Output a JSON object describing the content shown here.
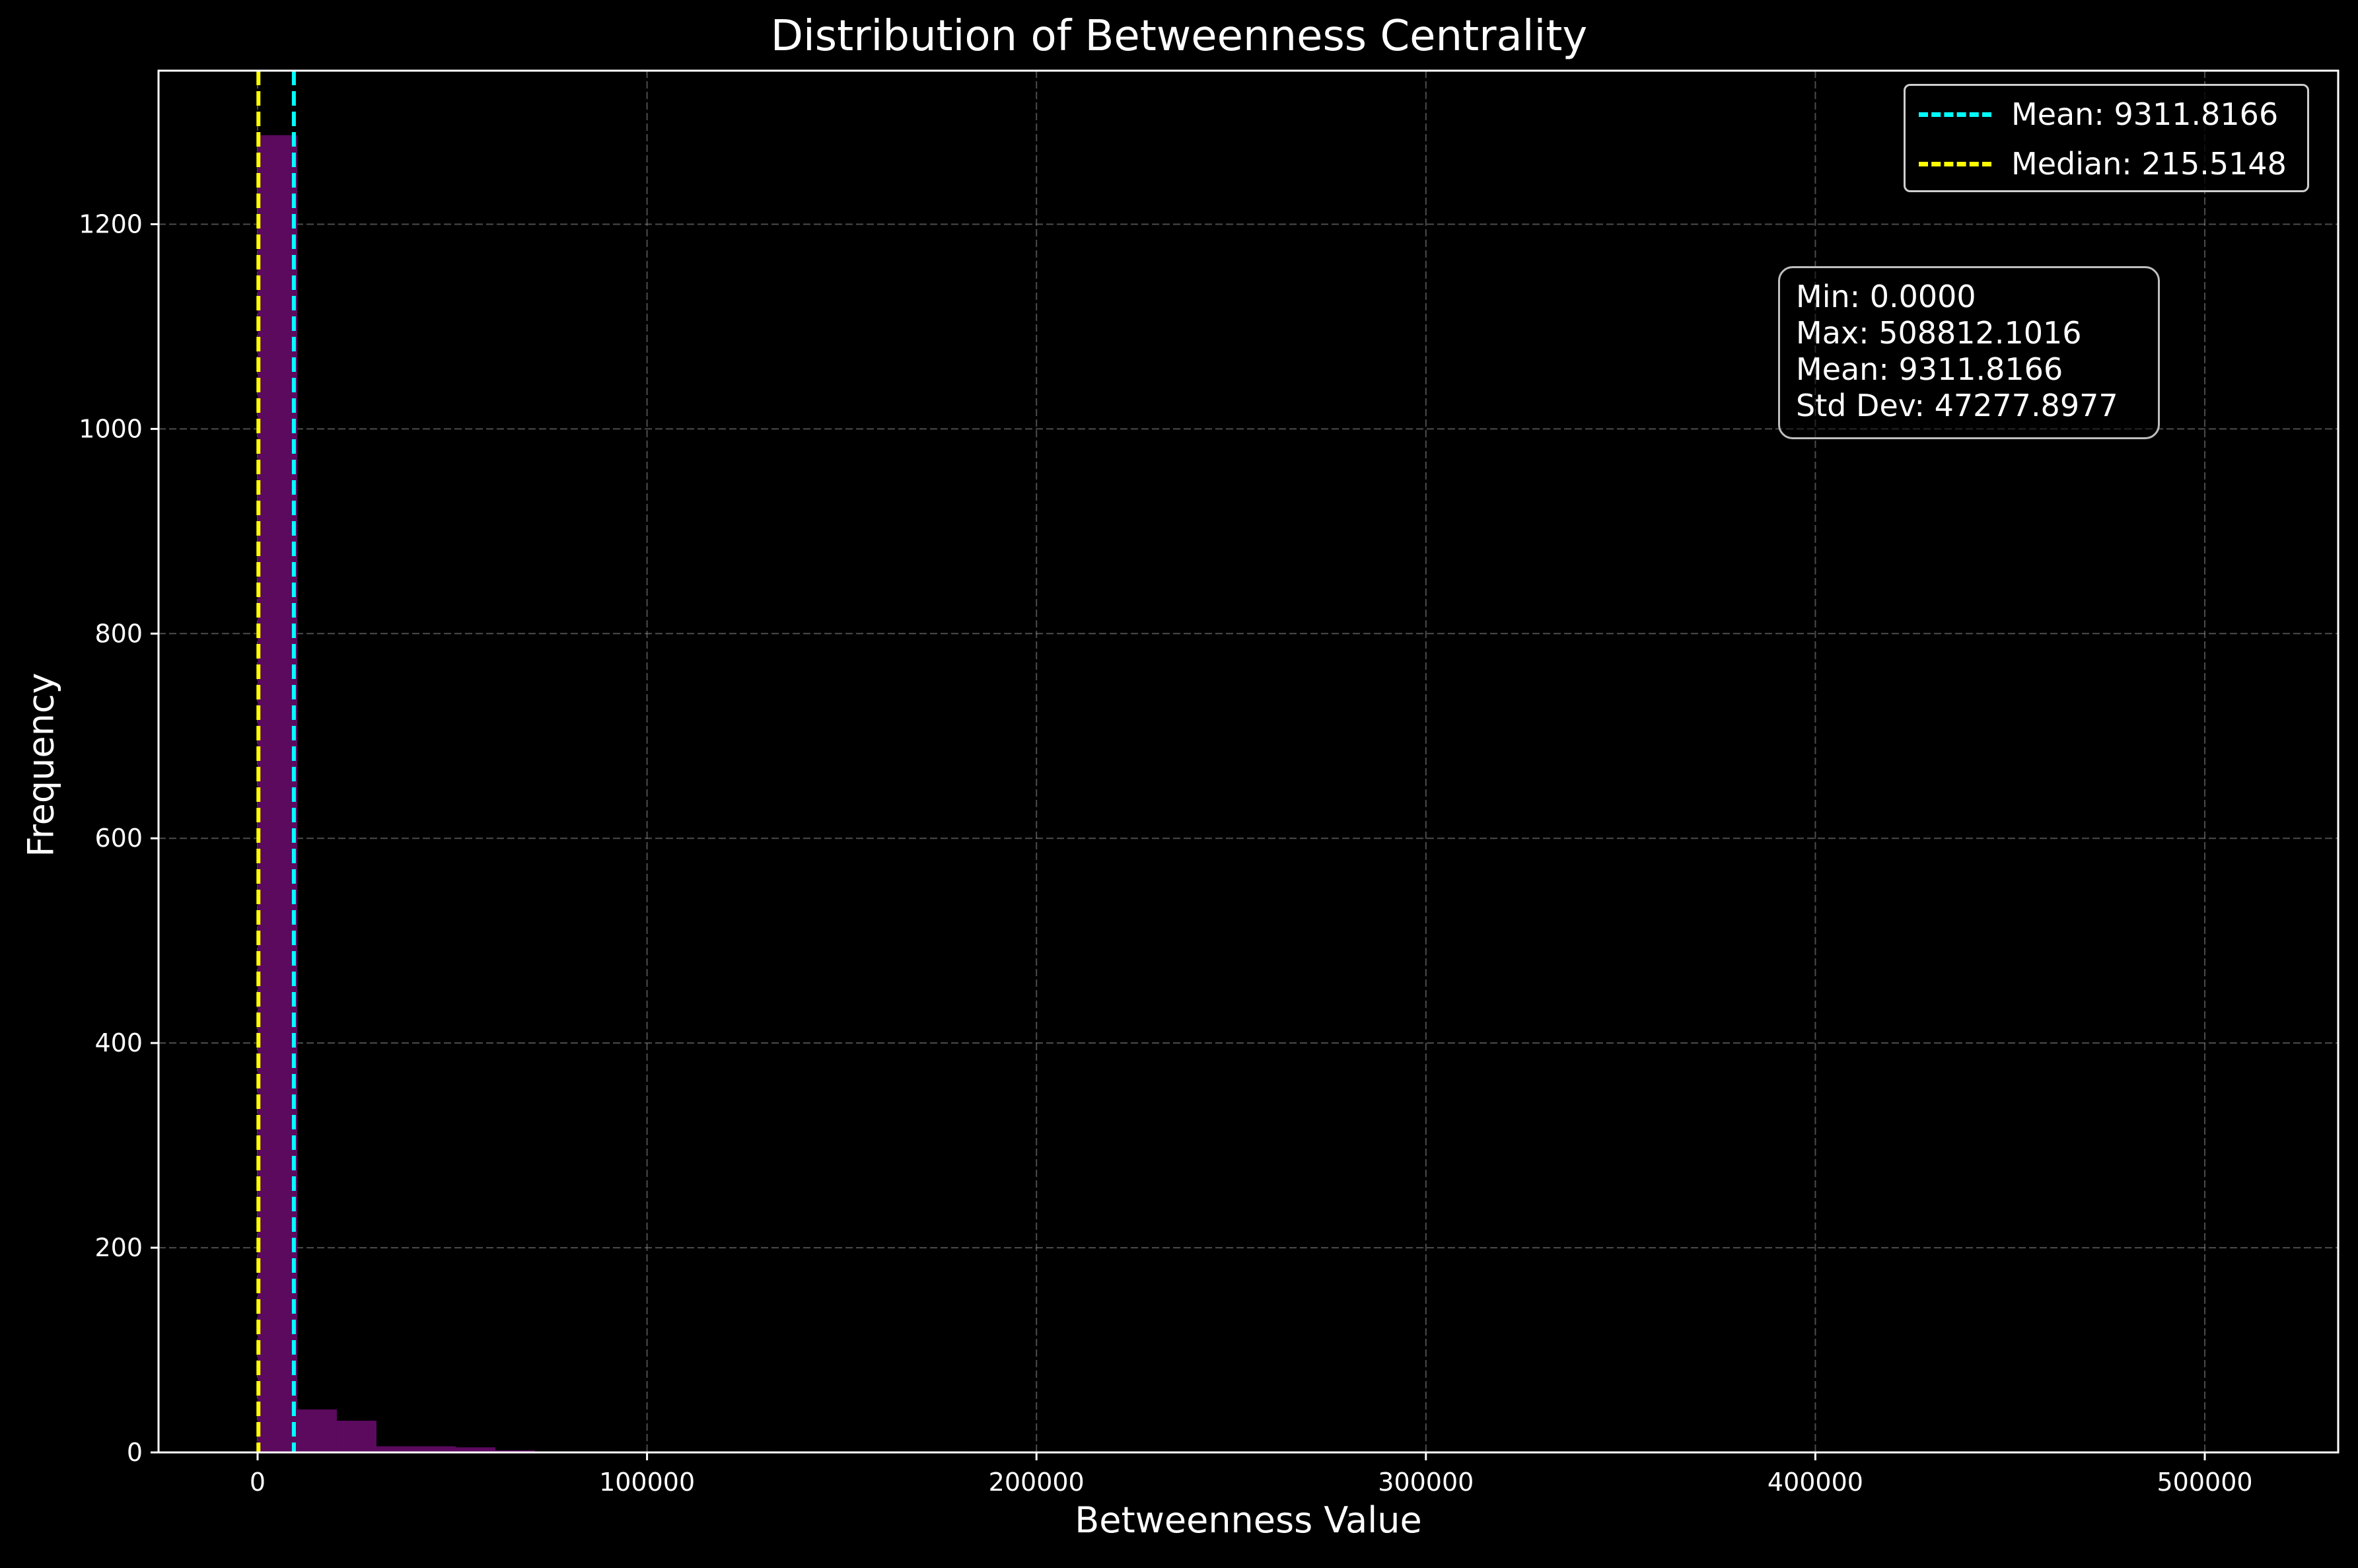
{
  "chart_data": {
    "type": "bar",
    "title": "Distribution of Betweenness Centrality",
    "xlabel": "Betweenness Value",
    "ylabel": "Frequency",
    "xlim": [
      -25440,
      534253
    ],
    "ylim": [
      0,
      1350
    ],
    "xticks": [
      0,
      100000,
      200000,
      300000,
      400000,
      500000
    ],
    "yticks": [
      0,
      200,
      400,
      600,
      800,
      1000,
      1200
    ],
    "grid": true,
    "bar_color": "#5b0a5e",
    "bin_width": 10176.24,
    "bins": [
      {
        "x0": 0,
        "count": 1287
      },
      {
        "x0": 10176.24,
        "count": 42
      },
      {
        "x0": 20352.48,
        "count": 31
      },
      {
        "x0": 30528.73,
        "count": 6
      },
      {
        "x0": 40704.97,
        "count": 6
      },
      {
        "x0": 50881.21,
        "count": 5
      },
      {
        "x0": 61057.45,
        "count": 2
      },
      {
        "x0": 71233.69,
        "count": 1
      },
      {
        "x0": 81409.94,
        "count": 1
      },
      {
        "x0": 122114.9,
        "count": 1
      },
      {
        "x0": 162819.9,
        "count": 1
      },
      {
        "x0": 173000,
        "count": 1
      },
      {
        "x0": 213700,
        "count": 1
      },
      {
        "x0": 223900,
        "count": 1
      },
      {
        "x0": 407000,
        "count": 1
      },
      {
        "x0": 437500,
        "count": 1
      },
      {
        "x0": 498636,
        "count": 1
      }
    ],
    "reference_lines": [
      {
        "name": "Mean: 9311.8166",
        "value": 9311.8166,
        "color": "#00ffff",
        "style": "dashed"
      },
      {
        "name": "Median: 215.5148",
        "value": 215.5148,
        "color": "#ffff00",
        "style": "dashed"
      }
    ],
    "legend_position": "top-right",
    "stats_text": [
      "Min: 0.0000",
      "Max: 508812.1016",
      "Mean: 9311.8166",
      "Std Dev: 47277.8977"
    ]
  }
}
